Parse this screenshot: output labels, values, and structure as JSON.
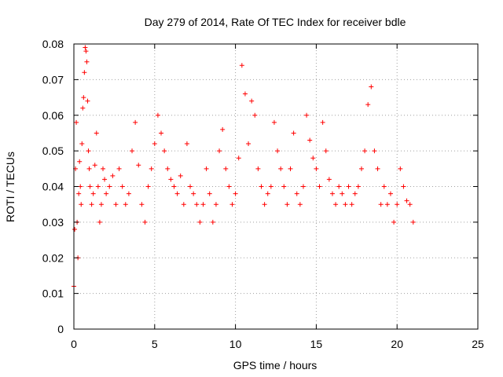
{
  "chart_data": {
    "type": "scatter",
    "title": "Day 279 of 2014, Rate Of TEC Index for receiver bdle",
    "xlabel": "GPS time / hours",
    "ylabel": "ROTI / TECUs",
    "xlim": [
      0,
      25
    ],
    "ylim": [
      0,
      0.08
    ],
    "x_ticks": [
      "0",
      "5",
      "10",
      "15",
      "20",
      "25"
    ],
    "y_ticks": [
      "0",
      "0.01",
      "0.02",
      "0.03",
      "0.04",
      "0.05",
      "0.06",
      "0.07",
      "0.08"
    ],
    "grid": true,
    "marker": "plus",
    "color": "#ff0000",
    "series": [
      {
        "x": [
          0.0,
          0.05,
          0.1,
          0.15,
          0.2,
          0.25,
          0.3,
          0.35,
          0.4,
          0.45,
          0.5,
          0.55,
          0.6,
          0.65,
          0.7,
          0.75,
          0.8,
          0.85,
          0.9,
          0.95,
          1.0,
          1.1,
          1.2,
          1.3,
          1.4,
          1.5,
          1.6,
          1.7,
          1.8,
          1.9,
          2.0,
          2.2,
          2.4,
          2.6,
          2.8,
          3.0,
          3.2,
          3.4,
          3.6,
          3.8,
          4.0,
          4.2,
          4.4,
          4.6,
          4.8,
          5.0,
          5.2,
          5.4,
          5.6,
          5.8,
          6.0,
          6.2,
          6.4,
          6.6,
          6.8,
          7.0,
          7.2,
          7.4,
          7.6,
          7.8,
          8.0,
          8.2,
          8.4,
          8.6,
          8.8,
          9.0,
          9.2,
          9.4,
          9.6,
          9.8,
          10.0,
          10.2,
          10.4,
          10.6,
          10.8,
          11.0,
          11.2,
          11.4,
          11.6,
          11.8,
          12.0,
          12.2,
          12.4,
          12.6,
          12.8,
          13.0,
          13.2,
          13.4,
          13.6,
          13.8,
          14.0,
          14.2,
          14.4,
          14.6,
          14.8,
          15.0,
          15.2,
          15.4,
          15.6,
          15.8,
          16.0,
          16.2,
          16.4,
          16.6,
          16.8,
          17.0,
          17.2,
          17.4,
          17.6,
          17.8,
          18.0,
          18.2,
          18.4,
          18.6,
          18.8,
          19.0,
          19.2,
          19.4,
          19.6,
          19.8,
          20.0,
          20.2,
          20.4,
          20.6,
          20.8,
          21.0
        ],
        "y": [
          0.012,
          0.028,
          0.045,
          0.058,
          0.03,
          0.02,
          0.038,
          0.047,
          0.04,
          0.035,
          0.052,
          0.062,
          0.065,
          0.072,
          0.079,
          0.078,
          0.075,
          0.064,
          0.05,
          0.045,
          0.04,
          0.035,
          0.038,
          0.046,
          0.055,
          0.04,
          0.03,
          0.035,
          0.045,
          0.042,
          0.038,
          0.04,
          0.043,
          0.035,
          0.045,
          0.04,
          0.035,
          0.038,
          0.05,
          0.058,
          0.046,
          0.035,
          0.03,
          0.04,
          0.045,
          0.052,
          0.06,
          0.055,
          0.05,
          0.045,
          0.042,
          0.04,
          0.038,
          0.043,
          0.035,
          0.052,
          0.04,
          0.038,
          0.035,
          0.03,
          0.035,
          0.045,
          0.038,
          0.03,
          0.035,
          0.05,
          0.056,
          0.045,
          0.04,
          0.035,
          0.038,
          0.048,
          0.074,
          0.066,
          0.052,
          0.064,
          0.06,
          0.045,
          0.04,
          0.035,
          0.038,
          0.04,
          0.058,
          0.05,
          0.045,
          0.04,
          0.035,
          0.045,
          0.055,
          0.038,
          0.035,
          0.04,
          0.06,
          0.053,
          0.048,
          0.045,
          0.04,
          0.058,
          0.05,
          0.042,
          0.038,
          0.035,
          0.04,
          0.038,
          0.035,
          0.04,
          0.035,
          0.038,
          0.04,
          0.045,
          0.05,
          0.063,
          0.068,
          0.05,
          0.045,
          0.035,
          0.04,
          0.035,
          0.038,
          0.03,
          0.035,
          0.045,
          0.04,
          0.036,
          0.035,
          0.03
        ]
      }
    ]
  }
}
